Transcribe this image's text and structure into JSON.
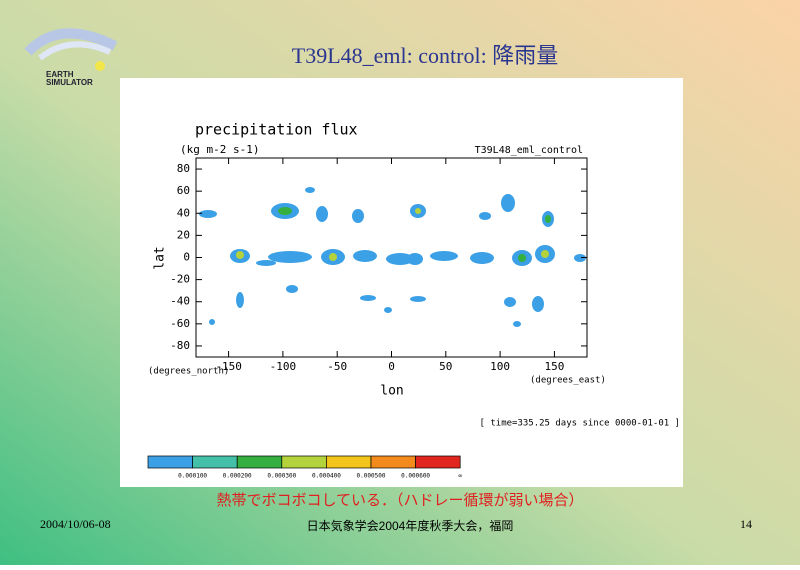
{
  "slide": {
    "title": "T39L48_eml: control: 降雨量",
    "logo": [
      "EARTH",
      "SIMULATOR"
    ],
    "caption": "熱帯でボコボコしている．（ハドレー循環が弱い場合）",
    "date": "2004/10/06-08",
    "meeting": "日本気象学会2004年度秋季大会，福岡",
    "page": "14"
  },
  "chart_data": {
    "type": "contour",
    "title": "precipitation flux",
    "units": "(kg m-2 s-1)",
    "run": "T39L48_eml_control",
    "xlabel": "lon",
    "ylabel": "lat",
    "xunit": "(degrees_east)",
    "yunit": "(degrees_north)",
    "time_note": "[ time=335.25 days since 0000-01-01 ]",
    "xlim": [
      -180,
      180
    ],
    "ylim": [
      -90,
      90
    ],
    "xticks": [
      -150,
      -100,
      -50,
      0,
      50,
      100,
      150
    ],
    "yticks": [
      -80,
      -60,
      -40,
      -20,
      0,
      20,
      40,
      60,
      80
    ],
    "colorbar": {
      "labels": [
        "0.000100",
        "0.000200",
        "0.000300",
        "0.000400",
        "0.000500",
        "0.000600",
        "∞"
      ],
      "colors": [
        "#3ca0e6",
        "#44bfa8",
        "#35b040",
        "#b4d23c",
        "#f2c41c",
        "#f28a1e",
        "#e0261e"
      ]
    }
  }
}
